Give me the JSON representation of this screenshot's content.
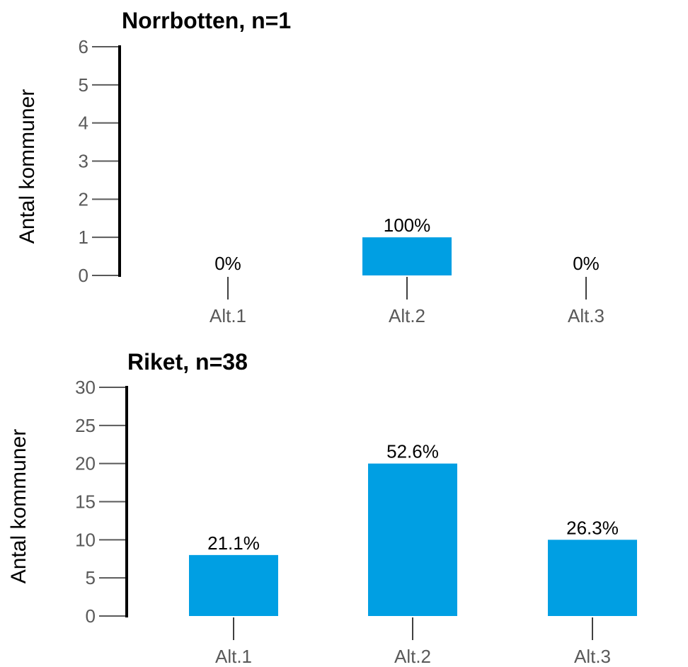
{
  "chart_data": [
    {
      "type": "bar",
      "title": "Norrbotten, n=1",
      "ylabel": "Antal kommuner",
      "xlabel": "",
      "categories": [
        "Alt.1",
        "Alt.2",
        "Alt.3"
      ],
      "values": [
        0,
        1,
        0
      ],
      "data_labels": [
        "0%",
        "100%",
        "0%"
      ],
      "ylim": [
        0,
        6
      ],
      "yticks": [
        "0",
        "1",
        "2",
        "3",
        "4",
        "5",
        "6"
      ],
      "grid": false,
      "legend": "none",
      "bar_color": "#009FE3"
    },
    {
      "type": "bar",
      "title": "Riket, n=38",
      "ylabel": "Antal kommuner",
      "xlabel": "",
      "categories": [
        "Alt.1",
        "Alt.2",
        "Alt.3"
      ],
      "values": [
        8,
        20,
        10
      ],
      "data_labels": [
        "21.1%",
        "52.6%",
        "26.3%"
      ],
      "ylim": [
        0,
        30
      ],
      "yticks": [
        "0",
        "5",
        "10",
        "15",
        "20",
        "25",
        "30"
      ],
      "grid": false,
      "legend": "none",
      "bar_color": "#009FE3"
    }
  ]
}
